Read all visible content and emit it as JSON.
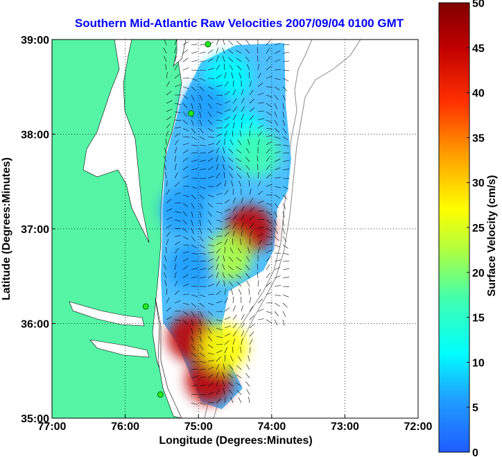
{
  "chart_data": {
    "type": "heatmap",
    "title": "Southern Mid-Atlantic Raw Velocities 2007/09/04 0100 GMT",
    "xlabel": "Longitude (Degrees:Minutes)",
    "ylabel": "Latitude (Degrees:Minutes)",
    "x_range": [
      -77,
      -72
    ],
    "y_range": [
      35,
      39
    ],
    "x_ticks": [
      {
        "value": -77,
        "label": "77:00"
      },
      {
        "value": -76,
        "label": "76:00"
      },
      {
        "value": -75,
        "label": "75:00"
      },
      {
        "value": -74,
        "label": "74:00"
      },
      {
        "value": -73,
        "label": "73:00"
      },
      {
        "value": -72,
        "label": "72:00"
      }
    ],
    "y_ticks": [
      {
        "value": 35,
        "label": "35:00"
      },
      {
        "value": 36,
        "label": "36:00"
      },
      {
        "value": 37,
        "label": "37:00"
      },
      {
        "value": 38,
        "label": "38:00"
      },
      {
        "value": 39,
        "label": "39:00"
      }
    ],
    "grid": true,
    "colorbar": {
      "label": "Surface Velocity (cm/s)",
      "range": [
        0,
        50
      ],
      "ticks": [
        "0",
        "5",
        "10",
        "15",
        "20",
        "25",
        "30",
        "35",
        "40",
        "45",
        "50"
      ],
      "position": "right"
    },
    "stations": [
      {
        "lon": -74.87,
        "lat": 38.95
      },
      {
        "lon": -75.1,
        "lat": 38.22
      },
      {
        "lon": -75.72,
        "lat": 36.18
      },
      {
        "lon": -75.52,
        "lat": 35.25
      }
    ],
    "velocity_regions": [
      {
        "lon": -74.6,
        "lat": 38.6,
        "speed": 12
      },
      {
        "lon": -74.9,
        "lat": 38.3,
        "speed": 10
      },
      {
        "lon": -74.4,
        "lat": 38.0,
        "speed": 14
      },
      {
        "lon": -74.2,
        "lat": 37.8,
        "speed": 18
      },
      {
        "lon": -74.9,
        "lat": 37.6,
        "speed": 8
      },
      {
        "lon": -75.2,
        "lat": 37.2,
        "speed": 7
      },
      {
        "lon": -74.3,
        "lat": 37.0,
        "speed": 46
      },
      {
        "lon": -74.6,
        "lat": 36.7,
        "speed": 26
      },
      {
        "lon": -75.1,
        "lat": 36.6,
        "speed": 8
      },
      {
        "lon": -75.1,
        "lat": 35.85,
        "speed": 45
      },
      {
        "lon": -74.85,
        "lat": 35.4,
        "speed": 48
      },
      {
        "lon": -74.65,
        "lat": 35.75,
        "speed": 30
      }
    ]
  }
}
